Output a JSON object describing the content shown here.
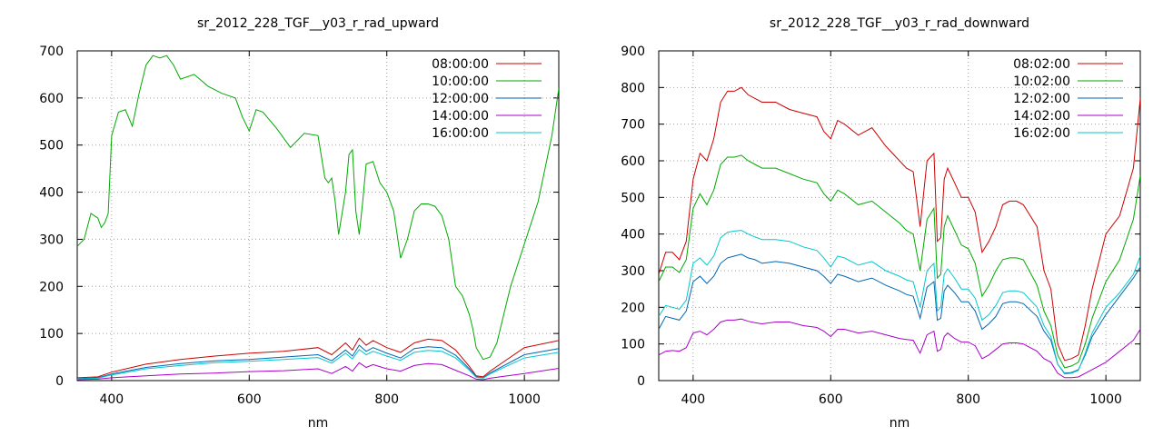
{
  "chart_data": [
    {
      "type": "line",
      "title": "sr_2012_228_TGF__y03_r_rad_upward",
      "xlabel": "nm",
      "ylabel": "",
      "xlim": [
        350,
        1050
      ],
      "ylim": [
        0,
        700
      ],
      "xticks": [
        400,
        600,
        800,
        1000
      ],
      "yticks": [
        0,
        100,
        200,
        300,
        400,
        500,
        600,
        700
      ],
      "grid": true,
      "legend": "top-right",
      "series": [
        {
          "name": "08:00:00",
          "color": "#cc0000",
          "x": [
            350,
            380,
            400,
            450,
            500,
            550,
            600,
            650,
            700,
            720,
            740,
            750,
            760,
            770,
            780,
            800,
            820,
            840,
            860,
            880,
            900,
            920,
            930,
            940,
            950,
            1000,
            1050
          ],
          "y": [
            6,
            8,
            18,
            35,
            45,
            52,
            58,
            62,
            70,
            55,
            80,
            65,
            90,
            75,
            85,
            70,
            60,
            80,
            88,
            85,
            65,
            30,
            10,
            8,
            20,
            70,
            85
          ]
        },
        {
          "name": "10:00:00",
          "color": "#00aa00",
          "x": [
            350,
            360,
            370,
            380,
            385,
            390,
            395,
            400,
            410,
            420,
            430,
            440,
            450,
            460,
            470,
            480,
            490,
            500,
            520,
            540,
            560,
            580,
            590,
            600,
            610,
            620,
            640,
            660,
            680,
            700,
            710,
            715,
            720,
            725,
            730,
            740,
            745,
            750,
            755,
            760,
            765,
            770,
            780,
            790,
            800,
            810,
            820,
            830,
            840,
            850,
            860,
            870,
            880,
            890,
            900,
            910,
            920,
            925,
            930,
            940,
            950,
            960,
            970,
            980,
            1000,
            1020,
            1040,
            1050
          ],
          "y": [
            285,
            300,
            355,
            345,
            325,
            335,
            355,
            520,
            570,
            575,
            540,
            610,
            670,
            690,
            685,
            690,
            670,
            640,
            650,
            625,
            610,
            600,
            560,
            530,
            575,
            570,
            535,
            495,
            525,
            520,
            430,
            420,
            430,
            380,
            310,
            400,
            480,
            490,
            360,
            310,
            380,
            460,
            465,
            420,
            400,
            360,
            260,
            300,
            360,
            375,
            375,
            370,
            350,
            300,
            200,
            180,
            140,
            110,
            70,
            45,
            50,
            80,
            140,
            200,
            290,
            380,
            520,
            620
          ]
        },
        {
          "name": "12:00:00",
          "color": "#0066b3",
          "x": [
            350,
            380,
            400,
            450,
            500,
            550,
            600,
            650,
            700,
            720,
            740,
            750,
            760,
            770,
            780,
            800,
            820,
            840,
            860,
            880,
            900,
            920,
            930,
            940,
            950,
            1000,
            1050
          ],
          "y": [
            4,
            6,
            14,
            28,
            36,
            42,
            45,
            50,
            55,
            42,
            65,
            52,
            75,
            62,
            70,
            58,
            48,
            68,
            72,
            70,
            54,
            25,
            8,
            6,
            16,
            55,
            68
          ]
        },
        {
          "name": "14:00:00",
          "color": "#aa00cc",
          "x": [
            350,
            380,
            400,
            450,
            500,
            550,
            600,
            650,
            700,
            720,
            740,
            750,
            760,
            770,
            780,
            800,
            820,
            840,
            860,
            880,
            900,
            920,
            930,
            940,
            950,
            1000,
            1050
          ],
          "y": [
            2,
            3,
            6,
            10,
            14,
            16,
            19,
            21,
            25,
            15,
            30,
            20,
            38,
            28,
            34,
            25,
            20,
            32,
            36,
            34,
            22,
            10,
            3,
            2,
            5,
            15,
            26
          ]
        },
        {
          "name": "16:00:00",
          "color": "#00c8cc",
          "x": [
            350,
            380,
            400,
            450,
            500,
            550,
            600,
            650,
            700,
            720,
            740,
            750,
            760,
            770,
            780,
            800,
            820,
            840,
            860,
            880,
            900,
            920,
            930,
            940,
            950,
            1000,
            1050
          ],
          "y": [
            3,
            5,
            12,
            25,
            32,
            38,
            41,
            45,
            49,
            37,
            58,
            46,
            66,
            55,
            62,
            52,
            43,
            60,
            64,
            62,
            48,
            22,
            7,
            5,
            14,
            48,
            60
          ]
        }
      ]
    },
    {
      "type": "line",
      "title": "sr_2012_228_TGF__y03_r_rad_downward",
      "xlabel": "nm",
      "ylabel": "",
      "xlim": [
        350,
        1050
      ],
      "ylim": [
        0,
        900
      ],
      "xticks": [
        400,
        600,
        800,
        1000
      ],
      "yticks": [
        0,
        100,
        200,
        300,
        400,
        500,
        600,
        700,
        800,
        900
      ],
      "grid": true,
      "legend": "top-right",
      "series": [
        {
          "name": "08:02:00",
          "color": "#cc0000",
          "x": [
            350,
            360,
            370,
            380,
            390,
            400,
            410,
            420,
            430,
            440,
            450,
            460,
            470,
            480,
            490,
            500,
            520,
            540,
            560,
            580,
            590,
            600,
            610,
            620,
            640,
            660,
            680,
            700,
            710,
            720,
            730,
            740,
            750,
            755,
            760,
            765,
            770,
            780,
            790,
            800,
            810,
            820,
            830,
            840,
            850,
            860,
            870,
            880,
            900,
            910,
            920,
            930,
            940,
            950,
            960,
            970,
            980,
            1000,
            1020,
            1040,
            1050
          ],
          "y": [
            290,
            350,
            350,
            330,
            380,
            550,
            620,
            600,
            660,
            760,
            790,
            790,
            800,
            780,
            770,
            760,
            760,
            740,
            730,
            720,
            680,
            660,
            710,
            700,
            670,
            690,
            640,
            600,
            580,
            570,
            420,
            600,
            620,
            380,
            390,
            550,
            580,
            540,
            500,
            500,
            460,
            350,
            380,
            420,
            480,
            490,
            490,
            480,
            420,
            300,
            250,
            100,
            55,
            60,
            70,
            150,
            250,
            400,
            450,
            580,
            770
          ]
        },
        {
          "name": "10:02:00",
          "color": "#00aa00",
          "x": [
            350,
            360,
            370,
            380,
            390,
            400,
            410,
            420,
            430,
            440,
            450,
            460,
            470,
            480,
            490,
            500,
            520,
            540,
            560,
            580,
            590,
            600,
            610,
            620,
            640,
            660,
            680,
            700,
            710,
            720,
            730,
            740,
            750,
            755,
            760,
            765,
            770,
            780,
            790,
            800,
            810,
            820,
            830,
            840,
            850,
            860,
            870,
            880,
            900,
            910,
            920,
            930,
            940,
            950,
            960,
            970,
            980,
            1000,
            1020,
            1040,
            1050
          ],
          "y": [
            270,
            310,
            310,
            295,
            330,
            470,
            510,
            480,
            520,
            590,
            610,
            610,
            615,
            600,
            590,
            580,
            580,
            565,
            550,
            540,
            510,
            490,
            520,
            510,
            480,
            490,
            460,
            430,
            410,
            400,
            300,
            440,
            470,
            280,
            290,
            420,
            450,
            410,
            370,
            360,
            320,
            230,
            260,
            300,
            330,
            335,
            335,
            330,
            260,
            190,
            150,
            70,
            35,
            40,
            50,
            100,
            170,
            270,
            330,
            440,
            560
          ]
        },
        {
          "name": "12:02:00",
          "color": "#0066b3",
          "x": [
            350,
            360,
            370,
            380,
            390,
            400,
            410,
            420,
            430,
            440,
            450,
            460,
            470,
            480,
            490,
            500,
            520,
            540,
            560,
            580,
            590,
            600,
            610,
            620,
            640,
            660,
            680,
            700,
            710,
            720,
            730,
            740,
            750,
            755,
            760,
            765,
            770,
            780,
            790,
            800,
            810,
            820,
            830,
            840,
            850,
            860,
            870,
            880,
            900,
            910,
            920,
            930,
            940,
            950,
            960,
            970,
            980,
            1000,
            1020,
            1040,
            1050
          ],
          "y": [
            140,
            175,
            170,
            165,
            190,
            270,
            285,
            265,
            285,
            320,
            335,
            340,
            345,
            335,
            330,
            320,
            325,
            320,
            310,
            300,
            285,
            265,
            290,
            285,
            270,
            280,
            260,
            245,
            235,
            230,
            170,
            255,
            270,
            165,
            170,
            245,
            260,
            240,
            215,
            215,
            190,
            140,
            155,
            175,
            210,
            215,
            215,
            210,
            175,
            135,
            110,
            45,
            20,
            22,
            30,
            70,
            120,
            180,
            230,
            280,
            310
          ]
        },
        {
          "name": "14:02:00",
          "color": "#aa00cc",
          "x": [
            350,
            360,
            370,
            380,
            390,
            400,
            410,
            420,
            430,
            440,
            450,
            460,
            470,
            480,
            490,
            500,
            520,
            540,
            560,
            580,
            590,
            600,
            610,
            620,
            640,
            660,
            680,
            700,
            710,
            720,
            730,
            740,
            750,
            755,
            760,
            765,
            770,
            780,
            790,
            800,
            810,
            820,
            830,
            840,
            850,
            860,
            870,
            880,
            900,
            910,
            920,
            930,
            940,
            950,
            960,
            970,
            980,
            1000,
            1020,
            1040,
            1050
          ],
          "y": [
            70,
            80,
            82,
            80,
            90,
            130,
            135,
            125,
            140,
            160,
            165,
            165,
            168,
            162,
            158,
            155,
            160,
            160,
            150,
            145,
            135,
            120,
            140,
            140,
            130,
            135,
            125,
            115,
            112,
            110,
            75,
            125,
            135,
            80,
            85,
            120,
            130,
            115,
            105,
            105,
            95,
            60,
            70,
            85,
            100,
            103,
            103,
            100,
            80,
            60,
            50,
            20,
            8,
            8,
            10,
            20,
            30,
            50,
            80,
            110,
            140
          ]
        },
        {
          "name": "16:02:00",
          "color": "#00c8cc",
          "x": [
            350,
            360,
            370,
            380,
            390,
            400,
            410,
            420,
            430,
            440,
            450,
            460,
            470,
            480,
            490,
            500,
            520,
            540,
            560,
            580,
            590,
            600,
            610,
            620,
            640,
            660,
            680,
            700,
            710,
            720,
            730,
            740,
            750,
            755,
            760,
            765,
            770,
            780,
            790,
            800,
            810,
            820,
            830,
            840,
            850,
            860,
            870,
            880,
            900,
            910,
            920,
            930,
            940,
            950,
            960,
            970,
            980,
            1000,
            1020,
            1040,
            1050
          ],
          "y": [
            175,
            205,
            200,
            195,
            220,
            320,
            335,
            315,
            340,
            390,
            405,
            408,
            410,
            400,
            392,
            385,
            385,
            380,
            365,
            355,
            335,
            310,
            340,
            335,
            315,
            325,
            300,
            285,
            275,
            270,
            200,
            300,
            320,
            190,
            200,
            290,
            305,
            280,
            250,
            250,
            225,
            165,
            180,
            205,
            240,
            245,
            245,
            240,
            200,
            150,
            120,
            45,
            18,
            20,
            28,
            75,
            130,
            200,
            240,
            290,
            340
          ]
        }
      ]
    }
  ]
}
